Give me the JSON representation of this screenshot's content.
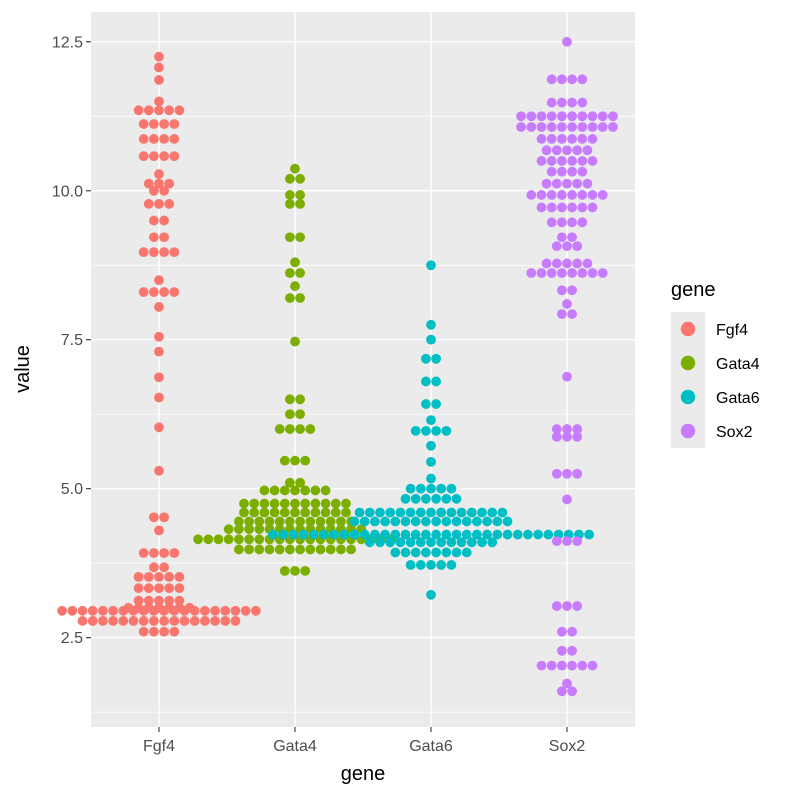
{
  "chart_data": {
    "type": "scatter",
    "subtype": "beeswarm",
    "title": "",
    "xlabel": "gene",
    "ylabel": "value",
    "categories": [
      "Fgf4",
      "Gata4",
      "Gata6",
      "Sox2"
    ],
    "ylim": [
      1.0,
      13.0
    ],
    "yticks": [
      2.5,
      5.0,
      7.5,
      10.0,
      12.5
    ],
    "ytick_labels": [
      "2.5",
      "5.0",
      "7.5",
      "10.0",
      "12.5"
    ],
    "legend": {
      "title": "gene",
      "position": "right",
      "entries": [
        "Fgf4",
        "Gata4",
        "Gata6",
        "Sox2"
      ]
    },
    "colors": {
      "Fgf4": "#F8766D",
      "Gata4": "#7CAE00",
      "Gata6": "#00BFC4",
      "Sox2": "#C77CFF"
    },
    "series": [
      {
        "name": "Fgf4",
        "values": [
          12.25,
          12.07,
          11.86,
          11.5,
          11.35,
          11.35,
          11.35,
          11.35,
          11.35,
          11.12,
          11.12,
          11.12,
          11.12,
          10.87,
          10.87,
          10.87,
          10.87,
          10.58,
          10.58,
          10.58,
          10.58,
          10.28,
          10.12,
          10.12,
          10.12,
          10.0,
          10.0,
          9.78,
          9.78,
          9.78,
          9.5,
          9.5,
          9.22,
          9.22,
          8.97,
          8.97,
          8.97,
          8.97,
          8.5,
          8.3,
          8.3,
          8.3,
          8.3,
          8.05,
          7.55,
          7.3,
          6.87,
          6.53,
          6.03,
          5.3,
          4.52,
          4.52,
          4.3,
          3.92,
          3.92,
          3.92,
          3.92,
          3.68,
          3.68,
          3.52,
          3.52,
          3.52,
          3.52,
          3.52,
          3.33,
          3.33,
          3.33,
          3.33,
          3.33,
          3.12,
          3.12,
          3.12,
          3.12,
          3.12,
          3.0,
          3.0,
          3.0,
          3.0,
          3.0,
          3.0,
          3.0,
          2.95,
          2.95,
          2.95,
          2.95,
          2.95,
          2.95,
          2.95,
          2.95,
          2.95,
          2.95,
          2.95,
          2.95,
          2.95,
          2.95,
          2.95,
          2.95,
          2.95,
          2.95,
          2.95,
          2.95,
          2.78,
          2.78,
          2.78,
          2.78,
          2.78,
          2.78,
          2.78,
          2.78,
          2.78,
          2.78,
          2.78,
          2.78,
          2.78,
          2.78,
          2.78,
          2.78,
          2.6,
          2.6,
          2.6,
          2.6
        ]
      },
      {
        "name": "Gata4",
        "values": [
          10.37,
          10.2,
          10.2,
          9.93,
          9.93,
          9.78,
          9.78,
          9.22,
          9.22,
          8.8,
          8.62,
          8.62,
          8.4,
          8.2,
          8.2,
          7.47,
          6.5,
          6.5,
          6.25,
          6.25,
          6.0,
          6.0,
          6.0,
          6.0,
          5.47,
          5.47,
          5.47,
          5.1,
          5.1,
          4.97,
          4.97,
          4.97,
          4.97,
          4.97,
          4.97,
          4.97,
          4.75,
          4.75,
          4.75,
          4.75,
          4.75,
          4.75,
          4.75,
          4.75,
          4.75,
          4.75,
          4.75,
          4.6,
          4.6,
          4.6,
          4.6,
          4.6,
          4.6,
          4.6,
          4.6,
          4.6,
          4.6,
          4.6,
          4.45,
          4.45,
          4.45,
          4.45,
          4.45,
          4.45,
          4.45,
          4.45,
          4.45,
          4.45,
          4.45,
          4.45,
          4.32,
          4.32,
          4.32,
          4.32,
          4.32,
          4.32,
          4.32,
          4.32,
          4.32,
          4.32,
          4.32,
          4.32,
          4.32,
          4.32,
          4.15,
          4.15,
          4.15,
          4.15,
          4.15,
          4.15,
          4.15,
          4.15,
          4.15,
          4.15,
          4.15,
          4.15,
          4.15,
          4.15,
          4.15,
          4.15,
          4.15,
          4.15,
          4.15,
          4.15,
          3.98,
          3.98,
          3.98,
          3.98,
          3.98,
          3.98,
          3.98,
          3.98,
          3.98,
          3.98,
          3.98,
          3.98,
          3.62,
          3.62,
          3.62
        ]
      },
      {
        "name": "Gata6",
        "values": [
          8.75,
          7.75,
          7.5,
          7.18,
          7.18,
          6.8,
          6.8,
          6.42,
          6.42,
          6.15,
          5.97,
          5.97,
          5.97,
          5.97,
          5.72,
          5.45,
          5.17,
          5.0,
          5.0,
          5.0,
          5.0,
          5.0,
          4.83,
          4.83,
          4.83,
          4.83,
          4.83,
          4.83,
          4.6,
          4.6,
          4.6,
          4.6,
          4.6,
          4.6,
          4.6,
          4.6,
          4.6,
          4.6,
          4.6,
          4.6,
          4.6,
          4.6,
          4.6,
          4.45,
          4.45,
          4.45,
          4.45,
          4.45,
          4.45,
          4.45,
          4.45,
          4.45,
          4.45,
          4.45,
          4.45,
          4.45,
          4.45,
          4.45,
          4.45,
          4.23,
          4.23,
          4.23,
          4.23,
          4.23,
          4.23,
          4.23,
          4.23,
          4.23,
          4.23,
          4.23,
          4.23,
          4.23,
          4.23,
          4.23,
          4.23,
          4.23,
          4.23,
          4.23,
          4.23,
          4.23,
          4.23,
          4.23,
          4.23,
          4.23,
          4.23,
          4.23,
          4.23,
          4.23,
          4.23,
          4.23,
          4.23,
          4.1,
          4.1,
          4.1,
          4.1,
          4.1,
          4.1,
          4.1,
          4.1,
          4.1,
          4.1,
          4.1,
          4.1,
          4.1,
          3.93,
          3.93,
          3.93,
          3.93,
          3.93,
          3.93,
          3.93,
          3.93,
          3.72,
          3.72,
          3.72,
          3.72,
          3.72,
          3.22
        ]
      },
      {
        "name": "Sox2",
        "values": [
          12.5,
          11.87,
          11.87,
          11.87,
          11.87,
          11.48,
          11.48,
          11.48,
          11.48,
          11.25,
          11.25,
          11.25,
          11.25,
          11.25,
          11.25,
          11.25,
          11.25,
          11.25,
          11.25,
          11.07,
          11.07,
          11.07,
          11.07,
          11.07,
          11.07,
          11.07,
          11.07,
          11.07,
          11.07,
          10.87,
          10.87,
          10.87,
          10.87,
          10.87,
          10.87,
          10.68,
          10.68,
          10.68,
          10.68,
          10.68,
          10.5,
          10.5,
          10.5,
          10.5,
          10.5,
          10.5,
          10.32,
          10.32,
          10.32,
          10.32,
          10.12,
          10.12,
          10.12,
          10.12,
          10.12,
          9.93,
          9.93,
          9.93,
          9.93,
          9.93,
          9.93,
          9.93,
          9.93,
          9.72,
          9.72,
          9.72,
          9.72,
          9.72,
          9.72,
          9.47,
          9.47,
          9.47,
          9.47,
          9.22,
          9.22,
          9.07,
          9.07,
          9.07,
          8.78,
          8.78,
          8.78,
          8.78,
          8.78,
          8.62,
          8.62,
          8.62,
          8.62,
          8.62,
          8.62,
          8.62,
          8.62,
          8.33,
          8.33,
          8.1,
          7.93,
          7.93,
          6.88,
          6.0,
          6.0,
          6.0,
          5.87,
          5.87,
          5.87,
          5.25,
          5.25,
          5.25,
          4.82,
          4.12,
          4.12,
          4.12,
          3.03,
          3.03,
          3.03,
          2.6,
          2.6,
          2.28,
          2.28,
          2.03,
          2.03,
          2.03,
          2.03,
          2.03,
          2.03,
          1.73,
          1.6,
          1.6
        ]
      }
    ]
  }
}
